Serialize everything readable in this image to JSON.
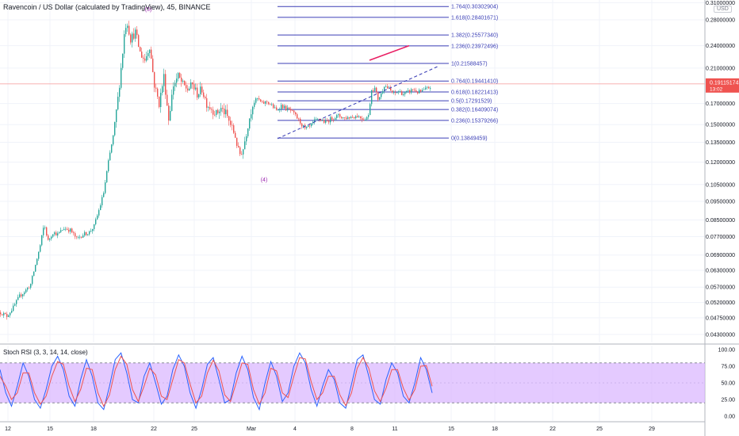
{
  "header": {
    "title": "Ravencoin / US Dollar (calculated by TradingView), 45, BINANCE",
    "currency_button": "USD"
  },
  "price_label": {
    "value": "0.19115174",
    "timer": "13:02",
    "color": "#ef5350"
  },
  "colors": {
    "up": "#26a69a",
    "down": "#ef5350",
    "fib": "#3b3fb6",
    "stoch_k": "#2962ff",
    "stoch_d": "#ef5350",
    "stoch_band": "#d9b3ff",
    "trend": "#e91e63"
  },
  "chart_data": [
    {
      "type": "candlestick",
      "title": "Ravencoin / US Dollar (calculated by TradingView), 45, BINANCE",
      "xlabel": "",
      "ylabel": "",
      "x_ticks": [
        "12",
        "15",
        "18",
        "22",
        "25",
        "Mar",
        "4",
        "8",
        "11",
        "15",
        "18",
        "22",
        "25",
        "29"
      ],
      "y_ticks": [
        "0.31000000",
        "0.28000000",
        "0.24000000",
        "0.21000000",
        "0.17000000",
        "0.15000000",
        "0.13500000",
        "0.12000000",
        "0.10500000",
        "0.09500000",
        "0.08500000",
        "0.07700000",
        "0.06900000",
        "0.06300000",
        "0.05700000",
        "0.05200000",
        "0.04750000",
        "0.04300000"
      ],
      "y_scale": "log",
      "ylim": [
        0.041,
        0.315
      ],
      "grid": true,
      "price_path": [
        {
          "x": 0,
          "y": 0.049
        },
        {
          "x": 8,
          "y": 0.048
        },
        {
          "x": 16,
          "y": 0.0505
        },
        {
          "x": 24,
          "y": 0.054
        },
        {
          "x": 32,
          "y": 0.056
        },
        {
          "x": 38,
          "y": 0.058
        },
        {
          "x": 44,
          "y": 0.065
        },
        {
          "x": 50,
          "y": 0.073
        },
        {
          "x": 55,
          "y": 0.083
        },
        {
          "x": 60,
          "y": 0.075
        },
        {
          "x": 66,
          "y": 0.079
        },
        {
          "x": 72,
          "y": 0.078
        },
        {
          "x": 80,
          "y": 0.081
        },
        {
          "x": 88,
          "y": 0.08
        },
        {
          "x": 96,
          "y": 0.076
        },
        {
          "x": 104,
          "y": 0.078
        },
        {
          "x": 112,
          "y": 0.079
        },
        {
          "x": 118,
          "y": 0.082
        },
        {
          "x": 124,
          "y": 0.09
        },
        {
          "x": 130,
          "y": 0.1
        },
        {
          "x": 136,
          "y": 0.12
        },
        {
          "x": 142,
          "y": 0.14
        },
        {
          "x": 148,
          "y": 0.175
        },
        {
          "x": 153,
          "y": 0.22
        },
        {
          "x": 157,
          "y": 0.27
        },
        {
          "x": 160,
          "y": 0.275
        },
        {
          "x": 164,
          "y": 0.25
        },
        {
          "x": 170,
          "y": 0.26
        },
        {
          "x": 176,
          "y": 0.23
        },
        {
          "x": 182,
          "y": 0.22
        },
        {
          "x": 188,
          "y": 0.24
        },
        {
          "x": 194,
          "y": 0.19
        },
        {
          "x": 200,
          "y": 0.17
        },
        {
          "x": 206,
          "y": 0.2
        },
        {
          "x": 212,
          "y": 0.155
        },
        {
          "x": 218,
          "y": 0.19
        },
        {
          "x": 224,
          "y": 0.2
        },
        {
          "x": 230,
          "y": 0.19
        },
        {
          "x": 236,
          "y": 0.185
        },
        {
          "x": 242,
          "y": 0.19
        },
        {
          "x": 248,
          "y": 0.18
        },
        {
          "x": 254,
          "y": 0.185
        },
        {
          "x": 260,
          "y": 0.17
        },
        {
          "x": 266,
          "y": 0.165
        },
        {
          "x": 272,
          "y": 0.16
        },
        {
          "x": 278,
          "y": 0.165
        },
        {
          "x": 284,
          "y": 0.16
        },
        {
          "x": 290,
          "y": 0.15
        },
        {
          "x": 296,
          "y": 0.14
        },
        {
          "x": 301,
          "y": 0.125
        },
        {
          "x": 306,
          "y": 0.13
        },
        {
          "x": 312,
          "y": 0.15
        },
        {
          "x": 318,
          "y": 0.17
        },
        {
          "x": 324,
          "y": 0.175
        },
        {
          "x": 330,
          "y": 0.17
        },
        {
          "x": 336,
          "y": 0.172
        },
        {
          "x": 342,
          "y": 0.168
        },
        {
          "x": 348,
          "y": 0.163
        },
        {
          "x": 354,
          "y": 0.168
        },
        {
          "x": 360,
          "y": 0.165
        },
        {
          "x": 366,
          "y": 0.163
        },
        {
          "x": 372,
          "y": 0.158
        },
        {
          "x": 378,
          "y": 0.152
        },
        {
          "x": 384,
          "y": 0.146
        },
        {
          "x": 390,
          "y": 0.148
        },
        {
          "x": 396,
          "y": 0.153
        },
        {
          "x": 402,
          "y": 0.155
        },
        {
          "x": 410,
          "y": 0.152
        },
        {
          "x": 418,
          "y": 0.156
        },
        {
          "x": 426,
          "y": 0.158
        },
        {
          "x": 434,
          "y": 0.156
        },
        {
          "x": 442,
          "y": 0.157
        },
        {
          "x": 450,
          "y": 0.158
        },
        {
          "x": 458,
          "y": 0.155
        },
        {
          "x": 464,
          "y": 0.158
        },
        {
          "x": 468,
          "y": 0.185
        },
        {
          "x": 472,
          "y": 0.186
        },
        {
          "x": 476,
          "y": 0.175
        },
        {
          "x": 480,
          "y": 0.18
        },
        {
          "x": 484,
          "y": 0.19
        },
        {
          "x": 490,
          "y": 0.185
        },
        {
          "x": 496,
          "y": 0.18
        },
        {
          "x": 502,
          "y": 0.183
        },
        {
          "x": 508,
          "y": 0.18
        },
        {
          "x": 514,
          "y": 0.182
        },
        {
          "x": 520,
          "y": 0.185
        },
        {
          "x": 526,
          "y": 0.182
        },
        {
          "x": 532,
          "y": 0.183
        },
        {
          "x": 538,
          "y": 0.186
        },
        {
          "x": 543,
          "y": 0.188
        }
      ],
      "last_price": 0.19115174,
      "wave_labels": [
        {
          "text": "(3)",
          "x": 187,
          "y": 0.295
        },
        {
          "text": "(4)",
          "x": 333,
          "y": 0.107
        }
      ],
      "fib_levels": [
        {
          "ratio": "1.764",
          "price": "0.30302904",
          "value": 0.30302904
        },
        {
          "ratio": "1.618",
          "price": "0.28401671",
          "value": 0.28401671
        },
        {
          "ratio": "1.382",
          "price": "0.25577340",
          "value": 0.2557734
        },
        {
          "ratio": "1.236",
          "price": "0.23972496",
          "value": 0.23972496
        },
        {
          "ratio": "1",
          "price": "0.21588457",
          "value": 0.21588457
        },
        {
          "ratio": "0.764",
          "price": "0.19441410",
          "value": 0.1944141
        },
        {
          "ratio": "0.618",
          "price": "0.18221413",
          "value": 0.18221413
        },
        {
          "ratio": "0.5",
          "price": "0.17291529",
          "value": 0.17291529
        },
        {
          "ratio": "0.382",
          "price": "0.16409074",
          "value": 0.16409074
        },
        {
          "ratio": "0.236",
          "price": "0.15379266",
          "value": 0.15379266
        },
        {
          "ratio": "0",
          "price": "0.13849459",
          "value": 0.13849459
        }
      ],
      "fib_x_range": [
        350,
        566
      ],
      "trend_lines": [
        {
          "style": "dashed",
          "color": "#3b3fb6",
          "from": {
            "x": 350,
            "y": 0.138
          },
          "to": {
            "x": 552,
            "y": 0.212
          }
        },
        {
          "style": "solid",
          "color": "#e91e63",
          "from": {
            "x": 466,
            "y": 0.22
          },
          "to": {
            "x": 516,
            "y": 0.24
          }
        }
      ]
    },
    {
      "type": "line",
      "title": "Stoch RSI (3, 3, 14, 14, close)",
      "y_ticks": [
        "100.00",
        "75.00",
        "50.00",
        "25.00",
        "0.00"
      ],
      "ylim": [
        0,
        100
      ],
      "band": [
        20,
        80
      ],
      "series": [
        {
          "values": [
            70,
            35,
            15,
            45,
            80,
            60,
            25,
            12,
            40,
            75,
            90,
            70,
            30,
            15,
            55,
            85,
            60,
            20,
            10,
            45,
            85,
            95,
            65,
            25,
            20,
            60,
            80,
            50,
            18,
            30,
            70,
            92,
            75,
            35,
            12,
            40,
            78,
            88,
            55,
            20,
            25,
            65,
            90,
            70,
            28,
            10,
            50,
            82,
            60,
            22,
            35,
            75,
            95,
            80,
            40,
            15,
            45,
            70,
            55,
            20,
            12,
            48,
            85,
            92,
            60,
            25,
            18,
            55,
            80,
            65,
            30,
            20,
            50,
            88,
            70,
            35
          ]
        },
        {
          "values": [
            60,
            45,
            25,
            35,
            65,
            65,
            35,
            18,
            30,
            60,
            82,
            78,
            45,
            22,
            40,
            72,
            70,
            35,
            15,
            32,
            70,
            90,
            78,
            40,
            22,
            45,
            72,
            62,
            30,
            25,
            55,
            85,
            80,
            48,
            20,
            30,
            65,
            84,
            68,
            32,
            22,
            50,
            80,
            78,
            40,
            18,
            35,
            72,
            68,
            35,
            28,
            60,
            88,
            86,
            52,
            25,
            35,
            60,
            60,
            32,
            16,
            35,
            72,
            88,
            72,
            38,
            22,
            42,
            70,
            70,
            42,
            24,
            40,
            75,
            76,
            45
          ]
        }
      ],
      "x_range": [
        0,
        545
      ]
    }
  ]
}
